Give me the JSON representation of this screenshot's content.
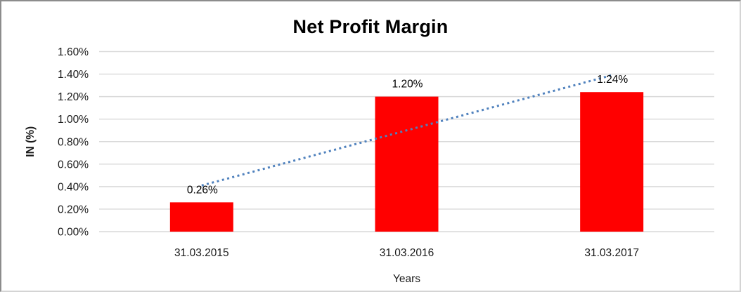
{
  "chart": {
    "container": "excel-style-chart"
  },
  "chart_data": {
    "type": "bar",
    "title": "Net Profit Margin",
    "categories": [
      "31.03.2015",
      "31.03.2016",
      "31.03.2017"
    ],
    "values": [
      0.26,
      1.2,
      1.24
    ],
    "data_labels": [
      "0.26%",
      "1.20%",
      "1.24%"
    ],
    "xlabel": "Years",
    "ylabel": "IN (%)",
    "ylim": [
      0,
      1.6
    ],
    "y_tick_step": 0.2,
    "y_ticks": [
      "0.00%",
      "0.20%",
      "0.40%",
      "0.60%",
      "0.80%",
      "1.00%",
      "1.20%",
      "1.40%",
      "1.60%"
    ],
    "grid": true,
    "legend": false,
    "trendline": {
      "type": "linear",
      "style": "dotted"
    },
    "colors": {
      "bar": "#FF0000",
      "trendline": "#4F81BD",
      "gridline": "#D9D9D9",
      "text": "#1A1A1A",
      "title": "#000000"
    }
  }
}
